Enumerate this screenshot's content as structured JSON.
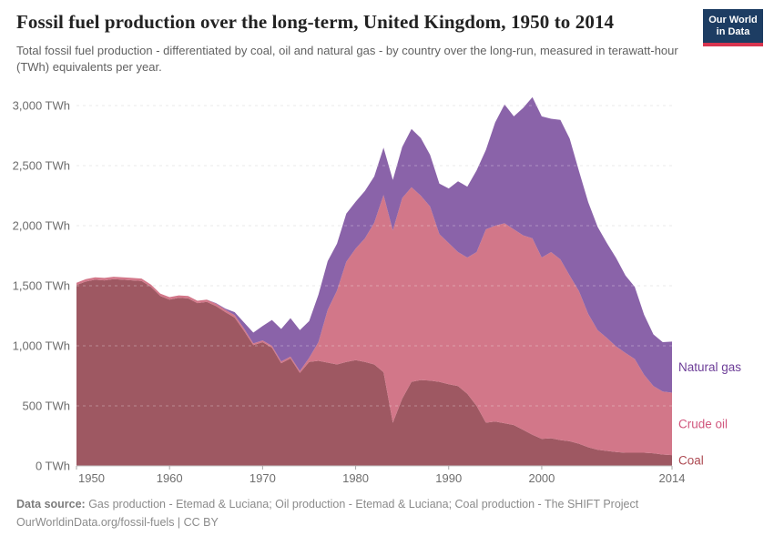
{
  "header": {
    "title": "Fossil fuel production over the long-term, United Kingdom, 1950 to 2014",
    "subtitle": "Total fossil fuel production - differentiated by coal, oil and natural gas - by country over the long-run, measured in terawatt-hour (TWh) equivalents per year."
  },
  "logo": {
    "line1": "Our World",
    "line2": "in Data",
    "bg_color": "#1d3d63",
    "stripe_color": "#d8354f"
  },
  "chart_data": {
    "type": "area",
    "stacked": true,
    "title": "Fossil fuel production over the long-term, United Kingdom, 1950 to 2014",
    "xlabel": "",
    "ylabel": "TWh",
    "x_range": [
      1950,
      2014
    ],
    "ylim": [
      0,
      3000
    ],
    "grid": true,
    "gridline_color": "#dedede",
    "legend_position": "right-edge-labels",
    "axis_text_color": "#6e6e6e",
    "years": [
      1950,
      1951,
      1952,
      1953,
      1954,
      1955,
      1956,
      1957,
      1958,
      1959,
      1960,
      1961,
      1962,
      1963,
      1964,
      1965,
      1966,
      1967,
      1968,
      1969,
      1970,
      1971,
      1972,
      1973,
      1974,
      1975,
      1976,
      1977,
      1978,
      1979,
      1980,
      1981,
      1982,
      1983,
      1984,
      1985,
      1986,
      1987,
      1988,
      1989,
      1990,
      1991,
      1992,
      1993,
      1994,
      1995,
      1996,
      1997,
      1998,
      1999,
      2000,
      2001,
      2002,
      2003,
      2004,
      2005,
      2006,
      2007,
      2008,
      2009,
      2010,
      2011,
      2012,
      2013,
      2014
    ],
    "series": [
      {
        "name": "Coal",
        "color": "#9e5862",
        "label_color": "#ad4a52",
        "values": [
          1505,
          1535,
          1550,
          1545,
          1555,
          1550,
          1545,
          1540,
          1490,
          1415,
          1385,
          1400,
          1395,
          1355,
          1365,
          1330,
          1280,
          1235,
          1125,
          1005,
          1030,
          985,
          855,
          895,
          775,
          865,
          875,
          860,
          845,
          865,
          880,
          865,
          845,
          780,
          360,
          560,
          700,
          715,
          710,
          700,
          680,
          665,
          600,
          500,
          360,
          370,
          355,
          340,
          300,
          260,
          225,
          230,
          215,
          205,
          185,
          155,
          135,
          125,
          115,
          110,
          110,
          110,
          105,
          95,
          90
        ]
      },
      {
        "name": "Crude oil",
        "color": "#d27789",
        "label_color": "#d1567d",
        "values": [
          20,
          20,
          20,
          20,
          20,
          20,
          20,
          20,
          20,
          20,
          20,
          20,
          20,
          20,
          20,
          20,
          20,
          20,
          20,
          15,
          15,
          15,
          15,
          15,
          15,
          35,
          155,
          440,
          615,
          835,
          930,
          1030,
          1180,
          1475,
          1600,
          1670,
          1620,
          1535,
          1450,
          1230,
          1175,
          1115,
          1135,
          1280,
          1610,
          1630,
          1665,
          1630,
          1620,
          1635,
          1510,
          1550,
          1505,
          1380,
          1270,
          1110,
          995,
          940,
          880,
          830,
          780,
          650,
          560,
          525,
          520
        ]
      },
      {
        "name": "Natural gas",
        "color": "#8a63a9",
        "label_color": "#6d3e98",
        "values": [
          0,
          0,
          0,
          0,
          0,
          0,
          0,
          0,
          0,
          0,
          0,
          0,
          0,
          0,
          0,
          5,
          10,
          25,
          50,
          90,
          120,
          215,
          270,
          320,
          340,
          305,
          395,
          405,
          390,
          400,
          390,
          395,
          385,
          395,
          420,
          425,
          485,
          480,
          430,
          420,
          455,
          590,
          590,
          680,
          660,
          860,
          990,
          940,
          1060,
          1175,
          1175,
          1110,
          1160,
          1140,
          1000,
          930,
          860,
          790,
          735,
          645,
          600,
          500,
          430,
          410,
          425
        ]
      }
    ],
    "y_ticks": [
      {
        "value": 0,
        "label": "0 TWh"
      },
      {
        "value": 500,
        "label": "500 TWh"
      },
      {
        "value": 1000,
        "label": "1,000 TWh"
      },
      {
        "value": 1500,
        "label": "1,500 TWh"
      },
      {
        "value": 2000,
        "label": "2,000 TWh"
      },
      {
        "value": 2500,
        "label": "2,500 TWh"
      },
      {
        "value": 3000,
        "label": "3,000 TWh"
      }
    ],
    "x_ticks": [
      {
        "value": 1950,
        "label": "1950"
      },
      {
        "value": 1960,
        "label": "1960"
      },
      {
        "value": 1970,
        "label": "1970"
      },
      {
        "value": 1980,
        "label": "1980"
      },
      {
        "value": 1990,
        "label": "1990"
      },
      {
        "value": 2000,
        "label": "2000"
      },
      {
        "value": 2014,
        "label": "2014"
      }
    ]
  },
  "footer": {
    "source_label": "Data source:",
    "source_text": " Gas production - Etemad & Luciana; Oil production - Etemad & Luciana; Coal production - The SHIFT Project",
    "license_line": "OurWorldinData.org/fossil-fuels | CC BY"
  }
}
